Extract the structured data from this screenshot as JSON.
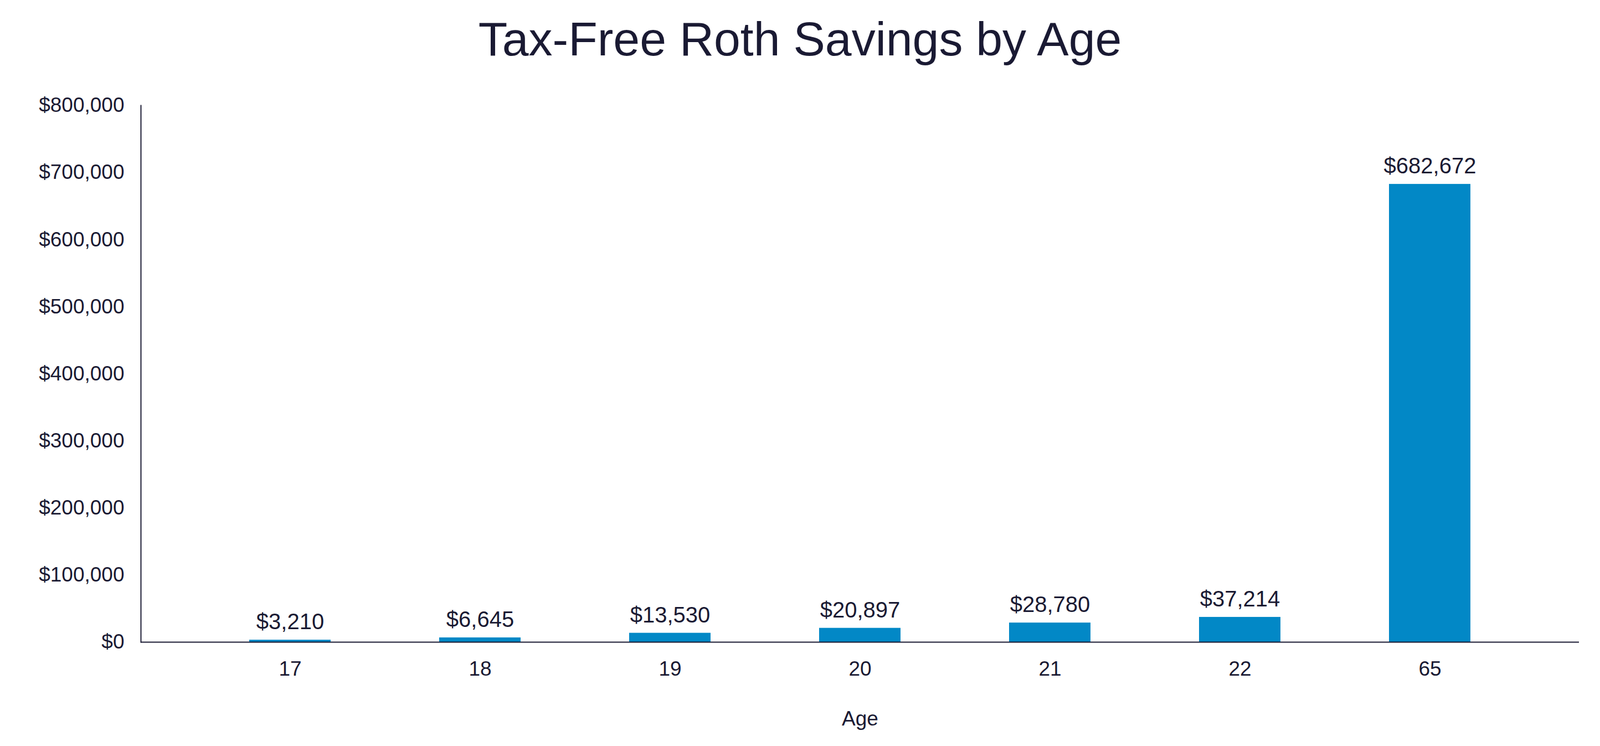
{
  "chart_data": {
    "type": "bar",
    "title": "Tax-Free Roth Savings by Age",
    "x_label": "Age",
    "categories": [
      "17",
      "18",
      "19",
      "20",
      "21",
      "22",
      "65"
    ],
    "values": [
      3210,
      6645,
      13530,
      20897,
      28780,
      37214,
      682672
    ],
    "value_labels": [
      "$3,210",
      "$6,645",
      "$13,530",
      "$20,897",
      "$28,780",
      "$37,214",
      "$682,672"
    ],
    "color": "#0288c6",
    "ylim": [
      0,
      800000
    ],
    "yticks": [
      {
        "value": 0,
        "label": "$0"
      },
      {
        "value": 100000,
        "label": "$100,000"
      },
      {
        "value": 200000,
        "label": "$200,000"
      },
      {
        "value": 300000,
        "label": "$300,000"
      },
      {
        "value": 400000,
        "label": "$400,000"
      },
      {
        "value": 500000,
        "label": "$500,000"
      },
      {
        "value": 600000,
        "label": "$600,000"
      },
      {
        "value": 700000,
        "label": "$700,000"
      },
      {
        "value": 800000,
        "label": "$800,000"
      }
    ],
    "grid": false,
    "data_labels": true
  }
}
